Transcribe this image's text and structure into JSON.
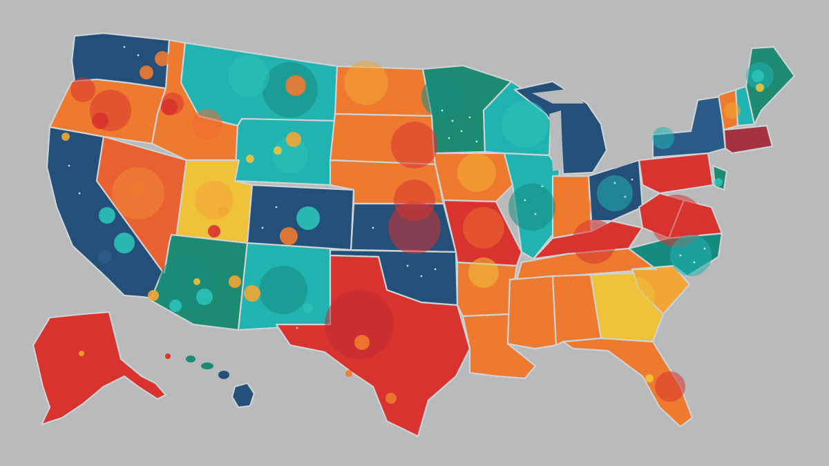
{
  "palette": {
    "background": "#b9babb",
    "border": "#cfd3d6",
    "navy": "#234f78",
    "blue": "#2a5a86",
    "teal": "#21b3b0",
    "teal_dark": "#178a80",
    "green": "#1d8a72",
    "orange": "#ee7a30",
    "orange_dark": "#e9612e",
    "red": "#d8332f",
    "red_dark": "#c22a2f",
    "yellow": "#efc23a",
    "gold": "#f2a635",
    "maroon": "#a3343f"
  },
  "regions": [
    {
      "id": "washington",
      "color": "navy"
    },
    {
      "id": "oregon",
      "color": "orange"
    },
    {
      "id": "california",
      "color": "navy"
    },
    {
      "id": "idaho",
      "color": "orange"
    },
    {
      "id": "nevada",
      "color": "orange_dark"
    },
    {
      "id": "montana",
      "color": "teal"
    },
    {
      "id": "wyoming",
      "color": "teal"
    },
    {
      "id": "utah",
      "color": "yellow"
    },
    {
      "id": "arizona",
      "color": "green"
    },
    {
      "id": "colorado",
      "color": "navy"
    },
    {
      "id": "new-mexico",
      "color": "teal"
    },
    {
      "id": "north-dakota",
      "color": "orange"
    },
    {
      "id": "south-dakota",
      "color": "orange"
    },
    {
      "id": "nebraska",
      "color": "orange"
    },
    {
      "id": "kansas",
      "color": "navy"
    },
    {
      "id": "oklahoma",
      "color": "navy"
    },
    {
      "id": "texas",
      "color": "red"
    },
    {
      "id": "minnesota",
      "color": "green"
    },
    {
      "id": "iowa",
      "color": "orange"
    },
    {
      "id": "missouri",
      "color": "red"
    },
    {
      "id": "arkansas",
      "color": "orange"
    },
    {
      "id": "louisiana",
      "color": "orange"
    },
    {
      "id": "wisconsin",
      "color": "teal"
    },
    {
      "id": "illinois",
      "color": "teal"
    },
    {
      "id": "michigan",
      "color": "navy"
    },
    {
      "id": "indiana",
      "color": "orange"
    },
    {
      "id": "ohio",
      "color": "navy"
    },
    {
      "id": "kentucky",
      "color": "red"
    },
    {
      "id": "tennessee",
      "color": "orange"
    },
    {
      "id": "mississippi",
      "color": "orange"
    },
    {
      "id": "alabama",
      "color": "orange"
    },
    {
      "id": "georgia",
      "color": "yellow"
    },
    {
      "id": "florida",
      "color": "orange"
    },
    {
      "id": "south-carolina",
      "color": "gold"
    },
    {
      "id": "north-carolina",
      "color": "teal_dark"
    },
    {
      "id": "virginia",
      "color": "red"
    },
    {
      "id": "west-virginia",
      "color": "red"
    },
    {
      "id": "pennsylvania",
      "color": "red"
    },
    {
      "id": "new-york",
      "color": "blue"
    },
    {
      "id": "new-jersey",
      "color": "green"
    },
    {
      "id": "vermont",
      "color": "orange"
    },
    {
      "id": "new-hampshire",
      "color": "teal"
    },
    {
      "id": "maine",
      "color": "green"
    },
    {
      "id": "massachusetts",
      "color": "maroon"
    },
    {
      "id": "alaska",
      "color": "red"
    },
    {
      "id": "hawaii",
      "color": "navy"
    }
  ]
}
